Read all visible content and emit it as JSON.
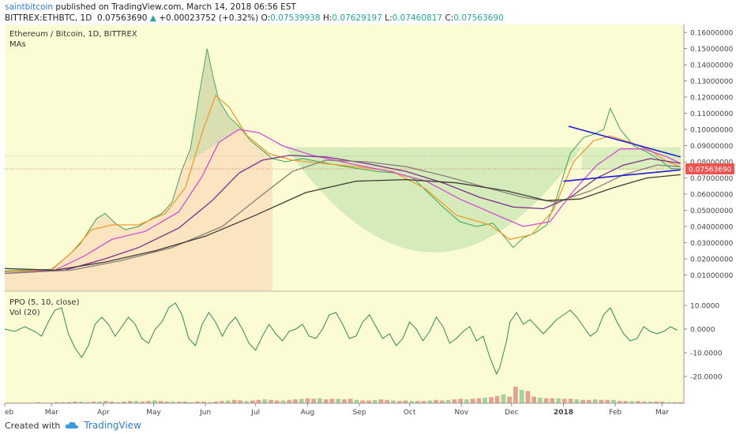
{
  "header": {
    "user": "saintbitcoin",
    "published": "published on TradingView.com, March 14, 2018 06:56 EST",
    "symbol": "BITTREX:ETHBTC, 1D",
    "last": "0.07563690",
    "change": "+0.00023752 (+0.32%)",
    "o_label": "O:",
    "o": "0.07539938",
    "h_label": "H:",
    "h": "0.07629197",
    "l_label": "L:",
    "l": "0.07460817",
    "c_label": "C:",
    "c": "0.07563690"
  },
  "panes": {
    "main_title": "Ethereum / Bitcoin, 1D, BITTREX",
    "main_sub": "MAs",
    "ppo_title": "PPO (5, 10, close)",
    "vol_title": "Vol (20)"
  },
  "footer": {
    "created_with": "Created with",
    "brand": "TradingView"
  },
  "colors": {
    "background": "#fbfbd4",
    "price": "#3aa657",
    "ma_orange": "#f29a2e",
    "ma_magenta": "#d24ed6",
    "ma_purple": "#7d2c8c",
    "ma_gray": "#8a7f7a",
    "ma_dark": "#3f3a30",
    "trendline": "#1c1cd6",
    "price_label_bg": "#ef5350"
  },
  "chart_data": {
    "type": "line",
    "x_axis": {
      "ticks": [
        "eb",
        "Mar",
        "Apr",
        "May",
        "Jun",
        "Jul",
        "Aug",
        "Sep",
        "Oct",
        "Nov",
        "Dec",
        "2018",
        "Feb",
        "Mar"
      ],
      "tick_index": [
        0,
        28,
        59,
        89,
        120,
        150,
        181,
        212,
        242,
        273,
        303,
        334,
        365,
        393
      ]
    },
    "price_axis": {
      "ticks": [
        "0.16000000",
        "0.15000000",
        "0.14000000",
        "0.13000000",
        "0.12000000",
        "0.11000000",
        "0.10000000",
        "0.09000000",
        "0.08000000",
        "0.07000000",
        "0.06000000",
        "0.05000000",
        "0.04000000",
        "0.03000000",
        "0.02000000",
        "0.01000000"
      ],
      "range": [
        0.0,
        0.162
      ],
      "last_price_label": "0.07563690",
      "last_price": 0.0756369
    },
    "price_series": {
      "name": "ETHBTC",
      "points": [
        [
          0,
          0.0125
        ],
        [
          28,
          0.0135
        ],
        [
          38,
          0.022
        ],
        [
          45,
          0.029
        ],
        [
          50,
          0.037
        ],
        [
          55,
          0.045
        ],
        [
          60,
          0.048
        ],
        [
          66,
          0.042
        ],
        [
          72,
          0.038
        ],
        [
          80,
          0.04
        ],
        [
          88,
          0.045
        ],
        [
          94,
          0.048
        ],
        [
          100,
          0.055
        ],
        [
          106,
          0.075
        ],
        [
          111,
          0.088
        ],
        [
          116,
          0.12
        ],
        [
          121,
          0.15
        ],
        [
          124,
          0.135
        ],
        [
          128,
          0.118
        ],
        [
          134,
          0.108
        ],
        [
          140,
          0.102
        ],
        [
          147,
          0.093
        ],
        [
          153,
          0.088
        ],
        [
          160,
          0.082
        ],
        [
          168,
          0.08
        ],
        [
          178,
          0.082
        ],
        [
          188,
          0.08
        ],
        [
          198,
          0.078
        ],
        [
          210,
          0.076
        ],
        [
          222,
          0.074
        ],
        [
          234,
          0.073
        ],
        [
          244,
          0.07
        ],
        [
          254,
          0.06
        ],
        [
          262,
          0.052
        ],
        [
          272,
          0.043
        ],
        [
          282,
          0.04
        ],
        [
          292,
          0.042
        ],
        [
          300,
          0.032
        ],
        [
          304,
          0.027
        ],
        [
          310,
          0.033
        ],
        [
          317,
          0.036
        ],
        [
          324,
          0.041
        ],
        [
          330,
          0.058
        ],
        [
          338,
          0.085
        ],
        [
          346,
          0.095
        ],
        [
          352,
          0.097
        ],
        [
          358,
          0.1
        ],
        [
          362,
          0.113
        ],
        [
          368,
          0.1
        ],
        [
          376,
          0.09
        ],
        [
          384,
          0.086
        ],
        [
          392,
          0.081
        ],
        [
          398,
          0.076
        ],
        [
          404,
          0.0756
        ]
      ]
    },
    "moving_averages": [
      {
        "color_key": "ma_orange",
        "points": [
          [
            0,
            0.012
          ],
          [
            28,
            0.013
          ],
          [
            40,
            0.024
          ],
          [
            52,
            0.038
          ],
          [
            64,
            0.041
          ],
          [
            80,
            0.041
          ],
          [
            96,
            0.048
          ],
          [
            108,
            0.064
          ],
          [
            118,
            0.098
          ],
          [
            126,
            0.121
          ],
          [
            134,
            0.114
          ],
          [
            145,
            0.096
          ],
          [
            158,
            0.085
          ],
          [
            172,
            0.081
          ],
          [
            190,
            0.079
          ],
          [
            210,
            0.077
          ],
          [
            232,
            0.074
          ],
          [
            252,
            0.063
          ],
          [
            270,
            0.047
          ],
          [
            290,
            0.041
          ],
          [
            302,
            0.032
          ],
          [
            315,
            0.035
          ],
          [
            328,
            0.05
          ],
          [
            340,
            0.08
          ],
          [
            352,
            0.093
          ],
          [
            362,
            0.096
          ],
          [
            374,
            0.092
          ],
          [
            386,
            0.087
          ],
          [
            396,
            0.08
          ],
          [
            404,
            0.077
          ]
        ]
      },
      {
        "color_key": "ma_magenta",
        "points": [
          [
            0,
            0.011
          ],
          [
            30,
            0.013
          ],
          [
            48,
            0.022
          ],
          [
            64,
            0.032
          ],
          [
            84,
            0.037
          ],
          [
            104,
            0.049
          ],
          [
            118,
            0.071
          ],
          [
            128,
            0.092
          ],
          [
            140,
            0.1
          ],
          [
            152,
            0.098
          ],
          [
            166,
            0.09
          ],
          [
            184,
            0.084
          ],
          [
            206,
            0.079
          ],
          [
            230,
            0.074
          ],
          [
            252,
            0.068
          ],
          [
            272,
            0.057
          ],
          [
            292,
            0.048
          ],
          [
            310,
            0.04
          ],
          [
            326,
            0.043
          ],
          [
            340,
            0.062
          ],
          [
            354,
            0.078
          ],
          [
            368,
            0.088
          ],
          [
            382,
            0.088
          ],
          [
            396,
            0.083
          ],
          [
            404,
            0.079
          ]
        ]
      },
      {
        "color_key": "ma_purple",
        "points": [
          [
            0,
            0.011
          ],
          [
            36,
            0.013
          ],
          [
            60,
            0.02
          ],
          [
            80,
            0.027
          ],
          [
            104,
            0.039
          ],
          [
            124,
            0.056
          ],
          [
            140,
            0.073
          ],
          [
            154,
            0.081
          ],
          [
            170,
            0.084
          ],
          [
            192,
            0.083
          ],
          [
            216,
            0.079
          ],
          [
            240,
            0.074
          ],
          [
            262,
            0.067
          ],
          [
            284,
            0.058
          ],
          [
            304,
            0.052
          ],
          [
            322,
            0.051
          ],
          [
            338,
            0.058
          ],
          [
            354,
            0.07
          ],
          [
            370,
            0.078
          ],
          [
            386,
            0.082
          ],
          [
            404,
            0.079
          ]
        ]
      },
      {
        "color_key": "ma_gray",
        "points": [
          [
            0,
            0.011
          ],
          [
            40,
            0.013
          ],
          [
            70,
            0.019
          ],
          [
            100,
            0.027
          ],
          [
            130,
            0.04
          ],
          [
            152,
            0.058
          ],
          [
            172,
            0.074
          ],
          [
            192,
            0.081
          ],
          [
            216,
            0.08
          ],
          [
            240,
            0.077
          ],
          [
            264,
            0.071
          ],
          [
            288,
            0.064
          ],
          [
            310,
            0.058
          ],
          [
            330,
            0.055
          ],
          [
            350,
            0.062
          ],
          [
            370,
            0.072
          ],
          [
            390,
            0.078
          ],
          [
            404,
            0.077
          ]
        ]
      },
      {
        "color_key": "ma_dark",
        "points": [
          [
            0,
            0.014
          ],
          [
            30,
            0.013
          ],
          [
            60,
            0.018
          ],
          [
            90,
            0.025
          ],
          [
            120,
            0.034
          ],
          [
            150,
            0.047
          ],
          [
            180,
            0.061
          ],
          [
            210,
            0.068
          ],
          [
            240,
            0.069
          ],
          [
            270,
            0.067
          ],
          [
            300,
            0.062
          ],
          [
            324,
            0.056
          ],
          [
            344,
            0.057
          ],
          [
            364,
            0.064
          ],
          [
            384,
            0.07
          ],
          [
            404,
            0.072
          ]
        ]
      }
    ],
    "cup_region": {
      "x_range": [
        168,
        345
      ],
      "rim": 0.089,
      "bottom": 0.024
    },
    "trendlines": [
      {
        "from": [
          337,
          0.102
        ],
        "to": [
          404,
          0.083
        ]
      },
      {
        "from": [
          334,
          0.068
        ],
        "to": [
          404,
          0.075
        ]
      }
    ],
    "ppo_axis": {
      "ticks": [
        "10.0000",
        "0.0000",
        "-10.0000",
        "-20.0000"
      ],
      "values": [
        10,
        0,
        -10,
        -20
      ],
      "range": [
        -22,
        16
      ]
    },
    "ppo_series": {
      "points": [
        [
          0,
          0
        ],
        [
          6,
          -1
        ],
        [
          12,
          1
        ],
        [
          18,
          -1
        ],
        [
          22,
          -3
        ],
        [
          26,
          3
        ],
        [
          30,
          8
        ],
        [
          34,
          9
        ],
        [
          38,
          -2
        ],
        [
          42,
          -8
        ],
        [
          46,
          -12
        ],
        [
          50,
          -7
        ],
        [
          54,
          2
        ],
        [
          58,
          5
        ],
        [
          62,
          2
        ],
        [
          66,
          -3
        ],
        [
          70,
          1
        ],
        [
          74,
          5
        ],
        [
          78,
          2
        ],
        [
          82,
          -4
        ],
        [
          86,
          -6
        ],
        [
          90,
          0
        ],
        [
          94,
          3
        ],
        [
          98,
          9
        ],
        [
          102,
          11
        ],
        [
          106,
          6
        ],
        [
          110,
          -4
        ],
        [
          114,
          -7
        ],
        [
          118,
          2
        ],
        [
          122,
          7
        ],
        [
          126,
          3
        ],
        [
          130,
          -3
        ],
        [
          134,
          2
        ],
        [
          138,
          5
        ],
        [
          142,
          0
        ],
        [
          146,
          -6
        ],
        [
          150,
          -9
        ],
        [
          154,
          -3
        ],
        [
          158,
          2
        ],
        [
          162,
          -2
        ],
        [
          166,
          -5
        ],
        [
          170,
          -1
        ],
        [
          174,
          0
        ],
        [
          178,
          2
        ],
        [
          182,
          -3
        ],
        [
          186,
          -4
        ],
        [
          190,
          0
        ],
        [
          194,
          6
        ],
        [
          198,
          7
        ],
        [
          202,
          2
        ],
        [
          206,
          -4
        ],
        [
          210,
          -3
        ],
        [
          214,
          3
        ],
        [
          218,
          6
        ],
        [
          222,
          1
        ],
        [
          226,
          -4
        ],
        [
          230,
          -2
        ],
        [
          234,
          -7
        ],
        [
          238,
          -4
        ],
        [
          242,
          3
        ],
        [
          246,
          0
        ],
        [
          250,
          -5
        ],
        [
          254,
          -1
        ],
        [
          258,
          5
        ],
        [
          262,
          1
        ],
        [
          266,
          -6
        ],
        [
          270,
          -4
        ],
        [
          274,
          -1
        ],
        [
          278,
          1
        ],
        [
          282,
          -5
        ],
        [
          286,
          -3
        ],
        [
          290,
          -12
        ],
        [
          294,
          -19
        ],
        [
          296,
          -16
        ],
        [
          300,
          -5
        ],
        [
          302,
          3
        ],
        [
          306,
          7
        ],
        [
          310,
          2
        ],
        [
          314,
          4
        ],
        [
          318,
          1
        ],
        [
          322,
          -2
        ],
        [
          326,
          1
        ],
        [
          330,
          4
        ],
        [
          334,
          6
        ],
        [
          338,
          8
        ],
        [
          342,
          5
        ],
        [
          346,
          1
        ],
        [
          350,
          -3
        ],
        [
          354,
          -1
        ],
        [
          358,
          6
        ],
        [
          362,
          9
        ],
        [
          366,
          3
        ],
        [
          370,
          -2
        ],
        [
          374,
          -5
        ],
        [
          378,
          -4
        ],
        [
          382,
          1
        ],
        [
          386,
          -1
        ],
        [
          390,
          -2
        ],
        [
          394,
          -1
        ],
        [
          398,
          1
        ],
        [
          402,
          -0.5
        ]
      ]
    },
    "volume_series": {
      "max_value": 100,
      "values": [
        1,
        1,
        1,
        1,
        1,
        2,
        1,
        1,
        2,
        2,
        2,
        3,
        3,
        2,
        3,
        3,
        4,
        3,
        2,
        3,
        4,
        4,
        3,
        4,
        5,
        4,
        3,
        3,
        3,
        3,
        2,
        3,
        3,
        2,
        3,
        4,
        5,
        6,
        5,
        4,
        5,
        6,
        7,
        6,
        5,
        5,
        6,
        7,
        8,
        9,
        8,
        9,
        7,
        8,
        8,
        7,
        8,
        6,
        5,
        5,
        6,
        7,
        6,
        5,
        4,
        5,
        4,
        4,
        4,
        5,
        6,
        5,
        6,
        7,
        8,
        7,
        8,
        9,
        10,
        11,
        13,
        16,
        12,
        30,
        24,
        22,
        12,
        10,
        9,
        9,
        9,
        8,
        8,
        7,
        6,
        6,
        7,
        6,
        6,
        6,
        4,
        4,
        4,
        4,
        3,
        3,
        3,
        3,
        2,
        2,
        2
      ]
    },
    "grid": false
  }
}
